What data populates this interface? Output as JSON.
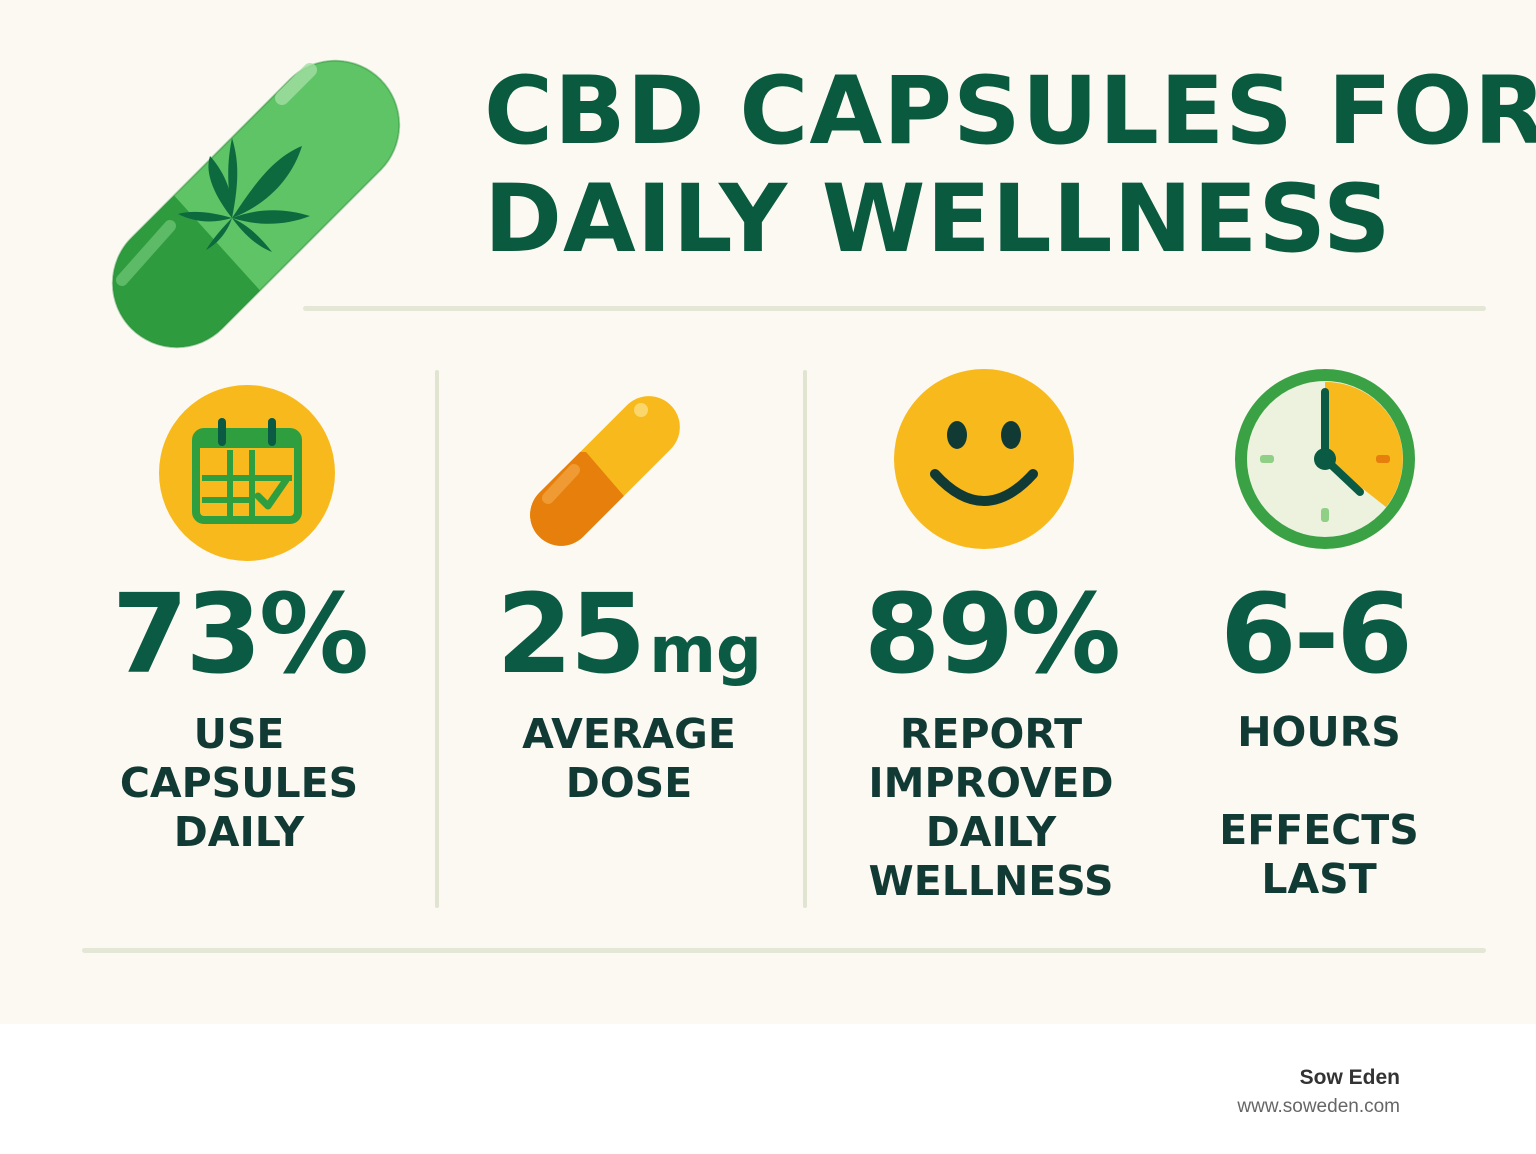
{
  "title": {
    "line1": "CBD CAPSULES FOR",
    "line2": "DAILY WELLNESS"
  },
  "stats": [
    {
      "value": "73%",
      "unit": "",
      "label": "USE\nCAPSULES\nDAILY",
      "icon": "calendar-check-icon"
    },
    {
      "value": "25",
      "unit": "mg",
      "label": "AVERAGE\nDOSE",
      "icon": "capsule-icon"
    },
    {
      "value": "89%",
      "unit": "",
      "label": "REPORT\nIMPROVED\nDAILY\nWELLNESS",
      "icon": "smiley-face-icon"
    },
    {
      "value": "6-6",
      "unit": "",
      "label": "HOURS\n\nEFFECTS\nLAST",
      "icon": "clock-icon"
    }
  ],
  "footer": {
    "brand": "Sow Eden",
    "url": "www.soweden.com"
  },
  "colors": {
    "primary_text": "#0a5a40",
    "accent_green": "#3cae4a",
    "accent_yellow": "#f8b91d",
    "accent_orange": "#e67f0c",
    "background": "#fcf9f2"
  }
}
